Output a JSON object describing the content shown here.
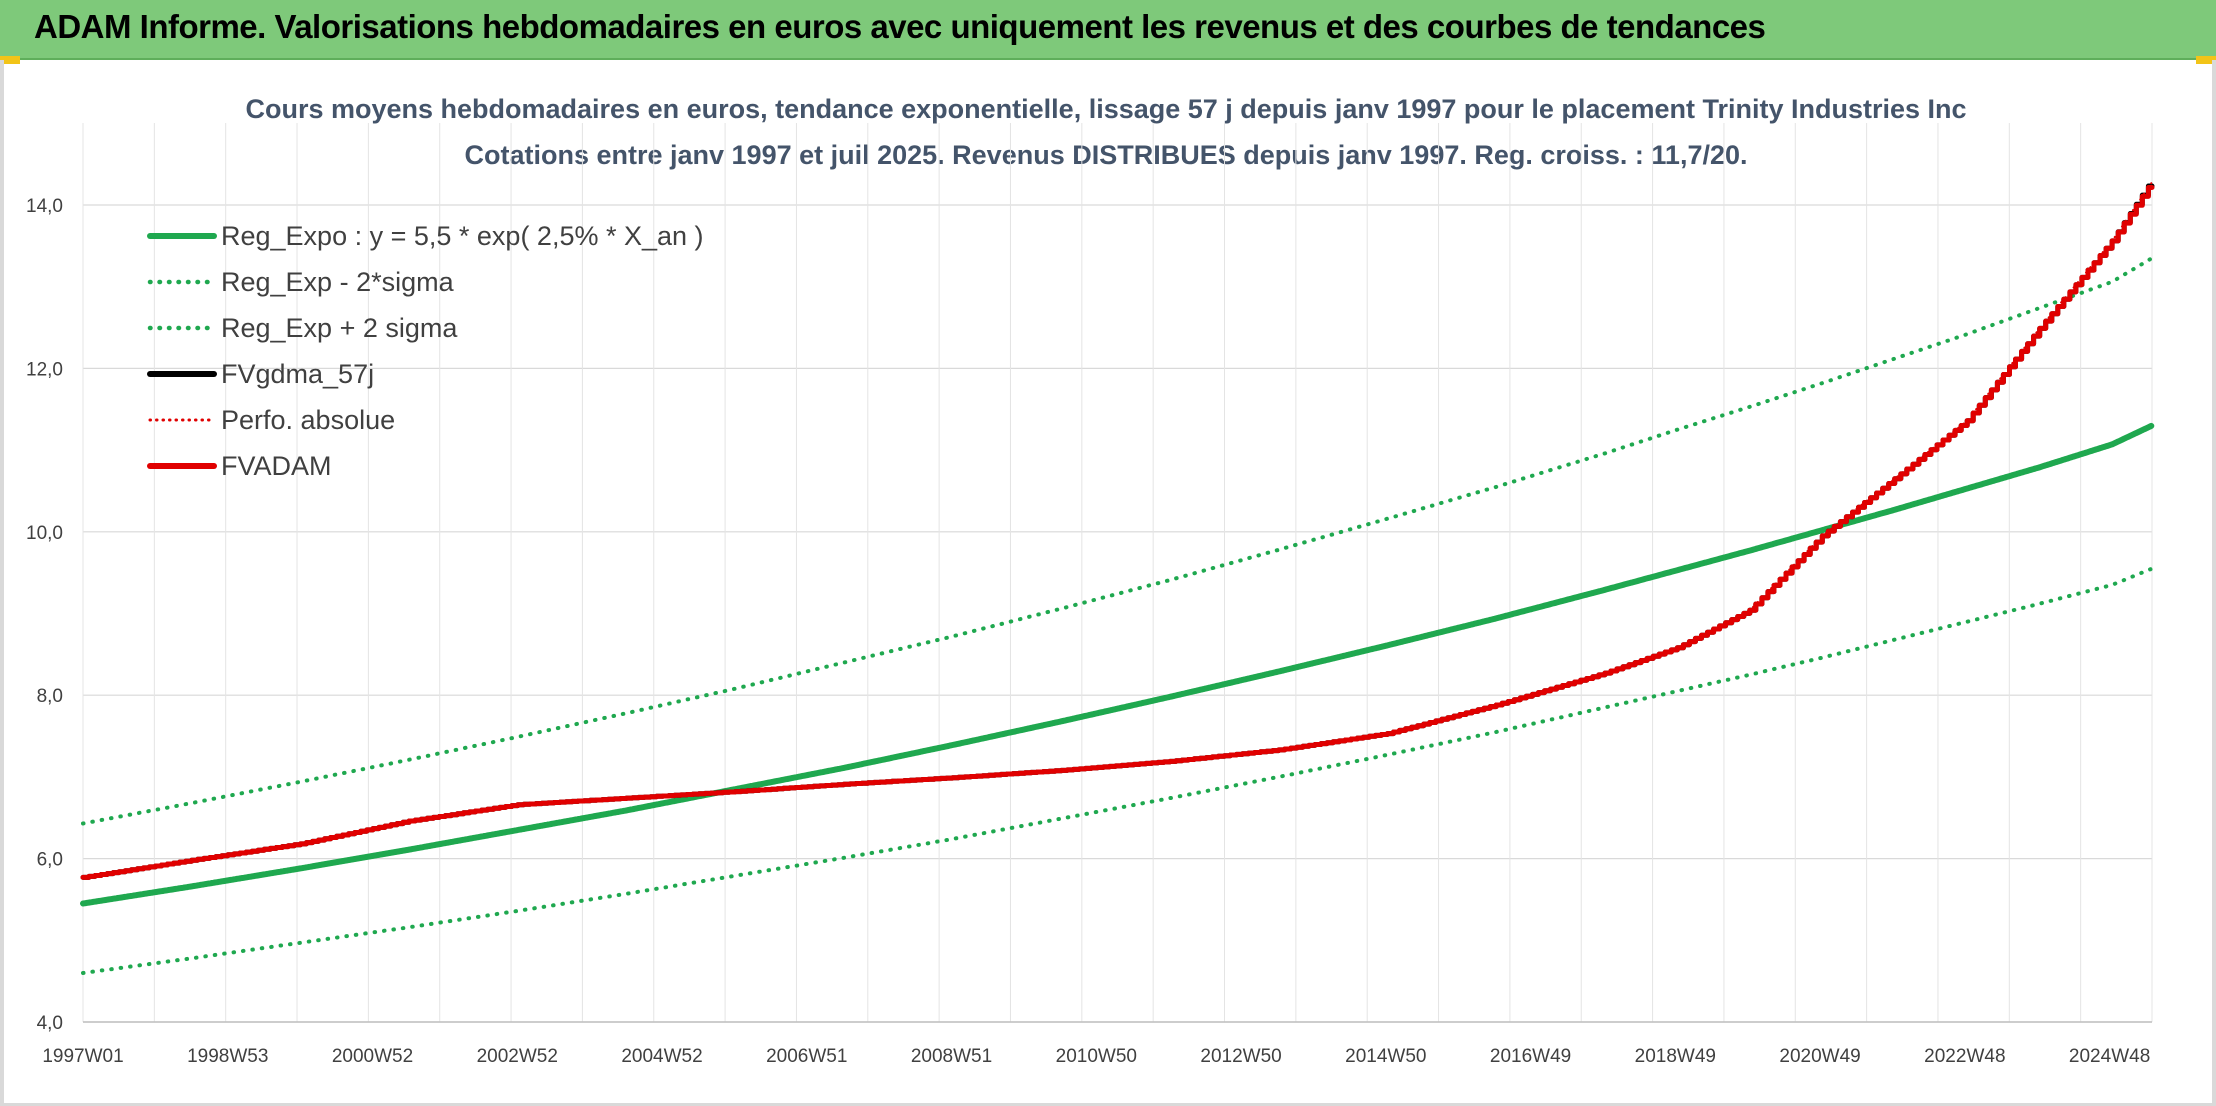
{
  "header": {
    "title": "ADAM Informe. Valorisations hebdomadaires en euros avec uniquement les revenus et des courbes de tendances"
  },
  "chart_data": {
    "type": "line",
    "title": "Cours moyens hebdomadaires en euros, tendance exponentielle, lissage 57 j depuis janv 1997 pour le placement Trinity Industries Inc",
    "subtitle": "Cotations entre janv 1997 et juil 2025. Revenus DISTRIBUES depuis janv 1997. Reg. croiss. : 11,7/20.",
    "xlabel": "",
    "ylabel": "",
    "ylim": [
      4.0,
      14.0
    ],
    "yticks": [
      "4,0",
      "6,0",
      "8,0",
      "10,0",
      "12,0",
      "14,0"
    ],
    "x_tick_labels": [
      "1997W01",
      "1998W53",
      "2000W52",
      "2002W52",
      "2004W52",
      "2006W51",
      "2008W51",
      "2010W50",
      "2012W50",
      "2014W50",
      "2016W49",
      "2018W49",
      "2020W49",
      "2022W48",
      "2024W48"
    ],
    "grid": true,
    "legend_position": "top-left",
    "x_years": [
      1997.0,
      1998.5,
      2000.0,
      2001.5,
      2003.0,
      2004.5,
      2006.0,
      2007.5,
      2009.0,
      2010.5,
      2012.0,
      2013.5,
      2015.0,
      2016.5,
      2018.0,
      2019.0,
      2020.0,
      2021.0,
      2022.0,
      2023.0,
      2024.0,
      2025.0,
      2025.55
    ],
    "series": [
      {
        "name": "Reg_Expo : y = 5,5 * exp( 2,5% *  X_an )",
        "color": "#1fa84f",
        "style": "solid",
        "values": [
          5.45,
          5.66,
          5.88,
          6.11,
          6.35,
          6.59,
          6.85,
          7.11,
          7.39,
          7.68,
          7.98,
          8.29,
          8.61,
          8.94,
          9.29,
          9.53,
          9.77,
          10.02,
          10.27,
          10.53,
          10.79,
          11.07,
          11.3
        ]
      },
      {
        "name": "Reg_Exp - 2*sigma",
        "color": "#1fa84f",
        "style": "dotted",
        "values": [
          4.6,
          4.78,
          4.97,
          5.16,
          5.36,
          5.57,
          5.79,
          6.01,
          6.24,
          6.49,
          6.74,
          7.0,
          7.27,
          7.55,
          7.85,
          8.05,
          8.25,
          8.46,
          8.68,
          8.9,
          9.12,
          9.35,
          9.55
        ]
      },
      {
        "name": "Reg_Exp + 2 sigma",
        "color": "#1fa84f",
        "style": "dotted",
        "values": [
          6.43,
          6.68,
          6.94,
          7.21,
          7.49,
          7.78,
          8.08,
          8.4,
          8.72,
          9.06,
          9.41,
          9.78,
          10.16,
          10.55,
          10.96,
          11.25,
          11.53,
          11.82,
          12.12,
          12.42,
          12.74,
          13.06,
          13.35
        ]
      },
      {
        "name": "FVgdma_57j",
        "color": "#000000",
        "style": "solid",
        "values": [
          5.77,
          5.98,
          6.18,
          6.46,
          6.66,
          6.74,
          6.82,
          6.91,
          6.99,
          7.08,
          7.19,
          7.33,
          7.53,
          7.88,
          8.27,
          8.58,
          9.04,
          9.95,
          10.65,
          11.36,
          12.49,
          13.56,
          14.3
        ]
      },
      {
        "name": "Perfo. absolue",
        "color": "#e00000",
        "style": "dotted",
        "values": [
          5.77,
          5.98,
          6.18,
          6.46,
          6.66,
          6.74,
          6.82,
          6.91,
          6.99,
          7.08,
          7.19,
          7.33,
          7.53,
          7.88,
          8.27,
          8.58,
          9.04,
          9.95,
          10.65,
          11.36,
          12.49,
          13.56,
          14.28
        ]
      },
      {
        "name": "FVADAM",
        "color": "#e00000",
        "style": "solid",
        "values": [
          5.77,
          5.98,
          6.18,
          6.46,
          6.66,
          6.74,
          6.82,
          6.91,
          6.99,
          7.08,
          7.19,
          7.33,
          7.53,
          7.88,
          8.27,
          8.58,
          9.04,
          9.95,
          10.65,
          11.36,
          12.49,
          13.56,
          14.28
        ]
      }
    ]
  }
}
